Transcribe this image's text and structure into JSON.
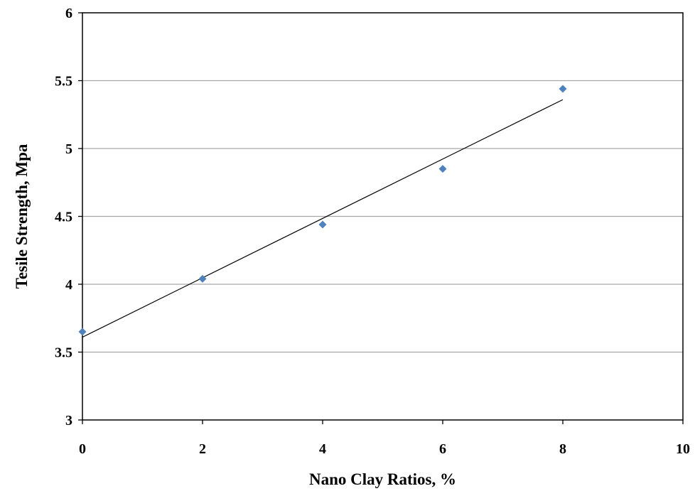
{
  "chart_data": {
    "type": "scatter",
    "title": "",
    "xlabel": "Nano Clay Ratios, %",
    "ylabel": "Tesile Strength, Mpa",
    "xlim": [
      0,
      10
    ],
    "ylim": [
      3,
      6
    ],
    "x_ticks": [
      0,
      2,
      4,
      6,
      8,
      10
    ],
    "y_ticks": [
      3,
      3.5,
      4,
      4.5,
      5,
      5.5,
      6
    ],
    "x_tick_labels": [
      "0",
      "2",
      "4",
      "6",
      "8",
      "10"
    ],
    "y_tick_labels": [
      "3",
      "3.5",
      "4",
      "4.5",
      "5",
      "5.5",
      "6"
    ],
    "grid": "horizontal",
    "legend": "none",
    "series": [
      {
        "x": [
          0,
          2,
          4,
          6,
          8
        ],
        "y": [
          3.65,
          4.04,
          4.44,
          4.85,
          5.44
        ],
        "marker": "diamond",
        "color": "#4f81bd"
      }
    ],
    "trendline": {
      "type": "linear",
      "x": [
        0,
        8
      ],
      "y": [
        3.61,
        5.36
      ],
      "color": "#000000"
    },
    "colors": {
      "grid": "#a6a6a6",
      "axis": "#000000",
      "marker": "#4f81bd"
    }
  }
}
